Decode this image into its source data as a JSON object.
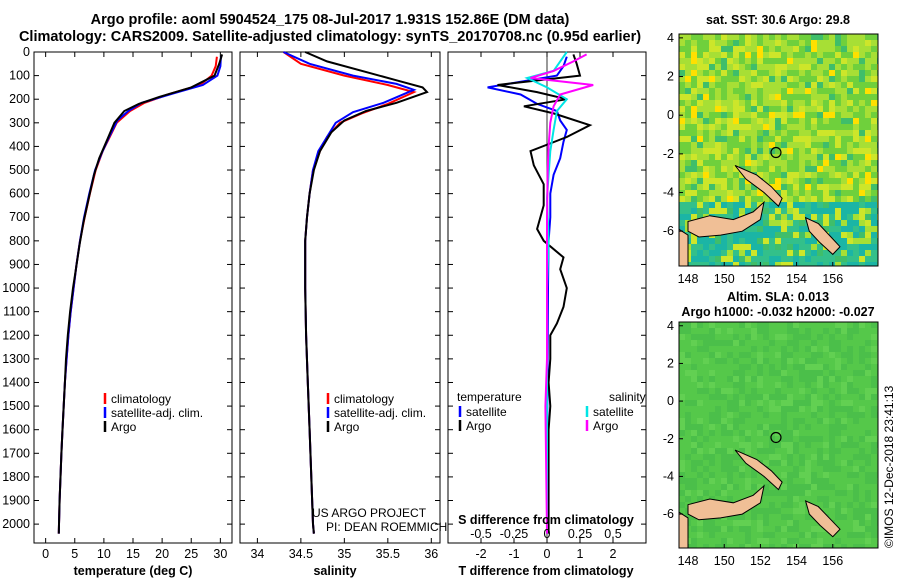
{
  "header": {
    "title_line1": "Argo profile: aoml 5904524_175 08-Jul-2017 1.931S 152.86E (DM data)",
    "title_line2": "Climatology: CARS2009. Satellite-adjusted climatology: synTS_20170708.nc (0.95d earlier)"
  },
  "colors": {
    "climatology": "#ff0000",
    "satellite": "#0000ff",
    "argo": "#000000",
    "salinity_satellite": "#00e5e5",
    "salinity_argo": "#ff00ff"
  },
  "chart_data": [
    {
      "id": "temperature",
      "type": "line",
      "xlabel": "temperature (deg C)",
      "ylabel": "",
      "xlim": [
        -2,
        32
      ],
      "ylim": [
        2080,
        0
      ],
      "xticks": [
        0,
        5,
        10,
        15,
        20,
        25,
        30
      ],
      "yticks": [
        0,
        100,
        200,
        300,
        400,
        500,
        600,
        700,
        800,
        900,
        1000,
        1100,
        1200,
        1300,
        1400,
        1500,
        1600,
        1700,
        1800,
        1900,
        2000
      ],
      "legend": [
        "climatology",
        "satellite-adj. clim.",
        "Argo"
      ],
      "series": [
        {
          "name": "climatology",
          "color": "#ff0000",
          "points": [
            [
              29.4,
              20
            ],
            [
              29.2,
              60
            ],
            [
              28.5,
              100
            ],
            [
              26.5,
              140
            ],
            [
              21,
              180
            ],
            [
              17,
              215
            ],
            [
              14.5,
              250
            ],
            [
              12.2,
              300
            ],
            [
              11,
              360
            ],
            [
              9.8,
              420
            ],
            [
              8.6,
              500
            ],
            [
              7.6,
              600
            ],
            [
              6.7,
              700
            ],
            [
              5.9,
              800
            ],
            [
              5.3,
              900
            ],
            [
              4.8,
              1000
            ],
            [
              4.3,
              1100
            ],
            [
              3.9,
              1200
            ],
            [
              3.6,
              1300
            ],
            [
              3.3,
              1400
            ],
            [
              3.1,
              1500
            ],
            [
              2.9,
              1600
            ],
            [
              2.7,
              1700
            ],
            [
              2.55,
              1800
            ],
            [
              2.4,
              1900
            ],
            [
              2.3,
              2000
            ],
            [
              2.25,
              2040
            ]
          ]
        },
        {
          "name": "satellite-adj. clim.",
          "color": "#0000ff",
          "points": [
            [
              30.1,
              20
            ],
            [
              30.0,
              60
            ],
            [
              29.5,
              100
            ],
            [
              27,
              140
            ],
            [
              22,
              175
            ],
            [
              16.5,
              215
            ],
            [
              14.2,
              250
            ],
            [
              12.3,
              290
            ],
            [
              10.9,
              360
            ],
            [
              9.6,
              430
            ],
            [
              8.5,
              500
            ],
            [
              7.5,
              600
            ],
            [
              6.6,
              700
            ],
            [
              5.9,
              800
            ],
            [
              5.3,
              900
            ],
            [
              4.8,
              1000
            ],
            [
              4.3,
              1100
            ],
            [
              3.9,
              1200
            ],
            [
              3.6,
              1300
            ],
            [
              3.3,
              1400
            ],
            [
              3.1,
              1500
            ],
            [
              2.9,
              1600
            ],
            [
              2.7,
              1700
            ],
            [
              2.55,
              1800
            ],
            [
              2.4,
              1900
            ],
            [
              2.3,
              2000
            ],
            [
              2.25,
              2040
            ]
          ]
        },
        {
          "name": "Argo",
          "color": "#000000",
          "points": [
            [
              30.3,
              10
            ],
            [
              29.8,
              50
            ],
            [
              29,
              100
            ],
            [
              25,
              150
            ],
            [
              19.5,
              190
            ],
            [
              16,
              220
            ],
            [
              13.5,
              250
            ],
            [
              11.8,
              300
            ],
            [
              10.6,
              370
            ],
            [
              9.2,
              450
            ],
            [
              8.3,
              520
            ],
            [
              7.4,
              620
            ],
            [
              6.5,
              720
            ],
            [
              5.8,
              820
            ],
            [
              5.2,
              920
            ],
            [
              4.7,
              1000
            ],
            [
              4.2,
              1100
            ],
            [
              3.8,
              1200
            ],
            [
              3.5,
              1300
            ],
            [
              3.3,
              1400
            ],
            [
              3.1,
              1500
            ],
            [
              2.9,
              1600
            ],
            [
              2.7,
              1700
            ],
            [
              2.55,
              1800
            ],
            [
              2.4,
              1900
            ],
            [
              2.3,
              2000
            ],
            [
              2.25,
              2040
            ]
          ]
        }
      ]
    },
    {
      "id": "salinity",
      "type": "line",
      "xlabel": "salinity",
      "ylabel": "",
      "xlim": [
        33.8,
        36.1
      ],
      "ylim": [
        2080,
        0
      ],
      "xticks": [
        34,
        34.5,
        35,
        35.5,
        36
      ],
      "legend": [
        "climatology",
        "satellite-adj. clim.",
        "Argo"
      ],
      "notes": [
        "US ARGO PROJECT",
        "PI: DEAN ROEMMICH"
      ],
      "series": [
        {
          "name": "climatology",
          "color": "#ff0000",
          "points": [
            [
              34.3,
              0
            ],
            [
              34.5,
              50
            ],
            [
              35.0,
              100
            ],
            [
              35.5,
              140
            ],
            [
              35.8,
              170
            ],
            [
              35.5,
              220
            ],
            [
              35.2,
              260
            ],
            [
              34.95,
              300
            ],
            [
              34.8,
              360
            ],
            [
              34.72,
              420
            ],
            [
              34.64,
              500
            ],
            [
              34.6,
              600
            ],
            [
              34.57,
              700
            ],
            [
              34.55,
              800
            ],
            [
              34.55,
              1000
            ],
            [
              34.56,
              1200
            ],
            [
              34.58,
              1400
            ],
            [
              34.6,
              1600
            ],
            [
              34.62,
              1800
            ],
            [
              34.64,
              2000
            ],
            [
              34.65,
              2040
            ]
          ]
        },
        {
          "name": "satellite-adj. clim.",
          "color": "#0000ff",
          "points": [
            [
              34.3,
              0
            ],
            [
              34.6,
              50
            ],
            [
              35.1,
              100
            ],
            [
              35.6,
              135
            ],
            [
              35.8,
              160
            ],
            [
              35.45,
              215
            ],
            [
              35.1,
              255
            ],
            [
              34.9,
              300
            ],
            [
              34.8,
              360
            ],
            [
              34.7,
              420
            ],
            [
              34.64,
              500
            ],
            [
              34.6,
              600
            ],
            [
              34.57,
              700
            ],
            [
              34.55,
              800
            ],
            [
              34.55,
              1000
            ],
            [
              34.56,
              1200
            ],
            [
              34.58,
              1400
            ],
            [
              34.6,
              1600
            ],
            [
              34.62,
              1800
            ],
            [
              34.64,
              2000
            ],
            [
              34.65,
              2040
            ]
          ]
        },
        {
          "name": "Argo",
          "color": "#000000",
          "points": [
            [
              34.55,
              0
            ],
            [
              34.8,
              40
            ],
            [
              35.3,
              90
            ],
            [
              35.6,
              120
            ],
            [
              35.9,
              150
            ],
            [
              35.95,
              170
            ],
            [
              35.6,
              215
            ],
            [
              35.25,
              250
            ],
            [
              35.0,
              290
            ],
            [
              34.85,
              340
            ],
            [
              34.72,
              420
            ],
            [
              34.65,
              500
            ],
            [
              34.6,
              600
            ],
            [
              34.57,
              700
            ],
            [
              34.55,
              800
            ],
            [
              34.55,
              1000
            ],
            [
              34.56,
              1200
            ],
            [
              34.58,
              1400
            ],
            [
              34.6,
              1600
            ],
            [
              34.62,
              1800
            ],
            [
              34.64,
              2000
            ],
            [
              34.65,
              2040
            ]
          ]
        }
      ]
    },
    {
      "id": "difference",
      "type": "line",
      "xlabel": "T difference from climatology",
      "top_label": "S difference from climatology",
      "xlim": [
        -3,
        3
      ],
      "ylim": [
        2080,
        0
      ],
      "xticks": [
        -2,
        -1,
        0,
        1,
        2
      ],
      "top_ticks": [
        "-0.5",
        "-0.25",
        "0",
        "0.25",
        "0.5"
      ],
      "legend_left_title": "temperature",
      "legend_right_title": "salinity",
      "legend_left": [
        "satellite",
        "Argo"
      ],
      "legend_right": [
        "satellite",
        "Argo"
      ],
      "series": [
        {
          "name": "temperature satellite",
          "color": "#0000ff",
          "points": [
            [
              0.6,
              20
            ],
            [
              0.5,
              60
            ],
            [
              0.3,
              100
            ],
            [
              -1.8,
              150
            ],
            [
              -0.8,
              180
            ],
            [
              -0.3,
              220
            ],
            [
              0.3,
              250
            ],
            [
              0.4,
              290
            ],
            [
              0.6,
              330
            ],
            [
              0.5,
              380
            ],
            [
              0.4,
              450
            ],
            [
              0.2,
              520
            ],
            [
              0.1,
              600
            ],
            [
              0.1,
              700
            ],
            [
              0.05,
              800
            ],
            [
              0.03,
              1000
            ],
            [
              0.02,
              1200
            ],
            [
              0.01,
              1500
            ],
            [
              0.0,
              1800
            ],
            [
              0.0,
              2040
            ]
          ]
        },
        {
          "name": "temperature Argo",
          "color": "#000000",
          "points": [
            [
              0.8,
              10
            ],
            [
              0.9,
              50
            ],
            [
              1.0,
              100
            ],
            [
              -1.5,
              140
            ],
            [
              -0.3,
              170
            ],
            [
              0.6,
              200
            ],
            [
              -0.7,
              230
            ],
            [
              0.2,
              260
            ],
            [
              1.3,
              310
            ],
            [
              0.6,
              360
            ],
            [
              -0.5,
              420
            ],
            [
              -0.4,
              480
            ],
            [
              -0.1,
              560
            ],
            [
              -0.1,
              650
            ],
            [
              -0.3,
              750
            ],
            [
              -0.1,
              800
            ],
            [
              0.5,
              870
            ],
            [
              0.4,
              920
            ],
            [
              0.6,
              1000
            ],
            [
              0.5,
              1080
            ],
            [
              0.3,
              1150
            ],
            [
              0.1,
              1200
            ],
            [
              0.1,
              1300
            ],
            [
              0.05,
              1400
            ],
            [
              0.1,
              1500
            ],
            [
              0.05,
              1600
            ],
            [
              0.05,
              1800
            ],
            [
              0.05,
              2040
            ]
          ]
        },
        {
          "name": "salinity satellite",
          "color": "#00e5e5",
          "points": [
            [
              0.6,
              0
            ],
            [
              0.4,
              40
            ],
            [
              0.2,
              80
            ],
            [
              -0.6,
              110
            ],
            [
              0.0,
              150
            ],
            [
              0.6,
              200
            ],
            [
              0.3,
              250
            ],
            [
              0.2,
              330
            ],
            [
              0.1,
              420
            ],
            [
              0.05,
              520
            ],
            [
              0.0,
              620
            ],
            [
              0.05,
              800
            ],
            [
              0.0,
              1000
            ],
            [
              0.0,
              1200
            ],
            [
              0.0,
              1500
            ],
            [
              0.0,
              2040
            ]
          ]
        },
        {
          "name": "salinity Argo",
          "color": "#ff00ff",
          "points": [
            [
              1.2,
              10
            ],
            [
              0.8,
              40
            ],
            [
              0.2,
              80
            ],
            [
              -0.5,
              110
            ],
            [
              1.4,
              140
            ],
            [
              0.4,
              180
            ],
            [
              0.2,
              230
            ],
            [
              0.1,
              300
            ],
            [
              0.05,
              400
            ],
            [
              0.02,
              500
            ],
            [
              0.0,
              700
            ],
            [
              0.0,
              1000
            ],
            [
              0.0,
              1300
            ],
            [
              -0.05,
              1500
            ],
            [
              -0.03,
              1700
            ],
            [
              0.0,
              2040
            ]
          ]
        }
      ]
    },
    {
      "id": "map_sst",
      "type": "heatmap",
      "title": "sat. SST: 30.6 Argo: 29.8",
      "xlim": [
        147.5,
        158.5
      ],
      "ylim": [
        -7.8,
        4.2
      ],
      "xticks": [
        148,
        150,
        152,
        154,
        156
      ],
      "yticks": [
        4,
        2,
        0,
        -2,
        -4,
        -6
      ],
      "argo_position": [
        152.86,
        -1.931
      ]
    },
    {
      "id": "map_sla",
      "type": "heatmap",
      "title_line1": "Altim. SLA: 0.013",
      "title_line2": "Argo h1000: -0.032 h2000: -0.027",
      "xlim": [
        147.5,
        158.5
      ],
      "ylim": [
        -7.8,
        4.2
      ],
      "xticks": [
        148,
        150,
        152,
        154,
        156
      ],
      "yticks": [
        4,
        2,
        0,
        -2,
        -4,
        -6
      ],
      "argo_position": [
        152.86,
        -1.931
      ]
    }
  ],
  "footer": {
    "credit": "©IMOS 12-Dec-2018 23:41:13"
  }
}
